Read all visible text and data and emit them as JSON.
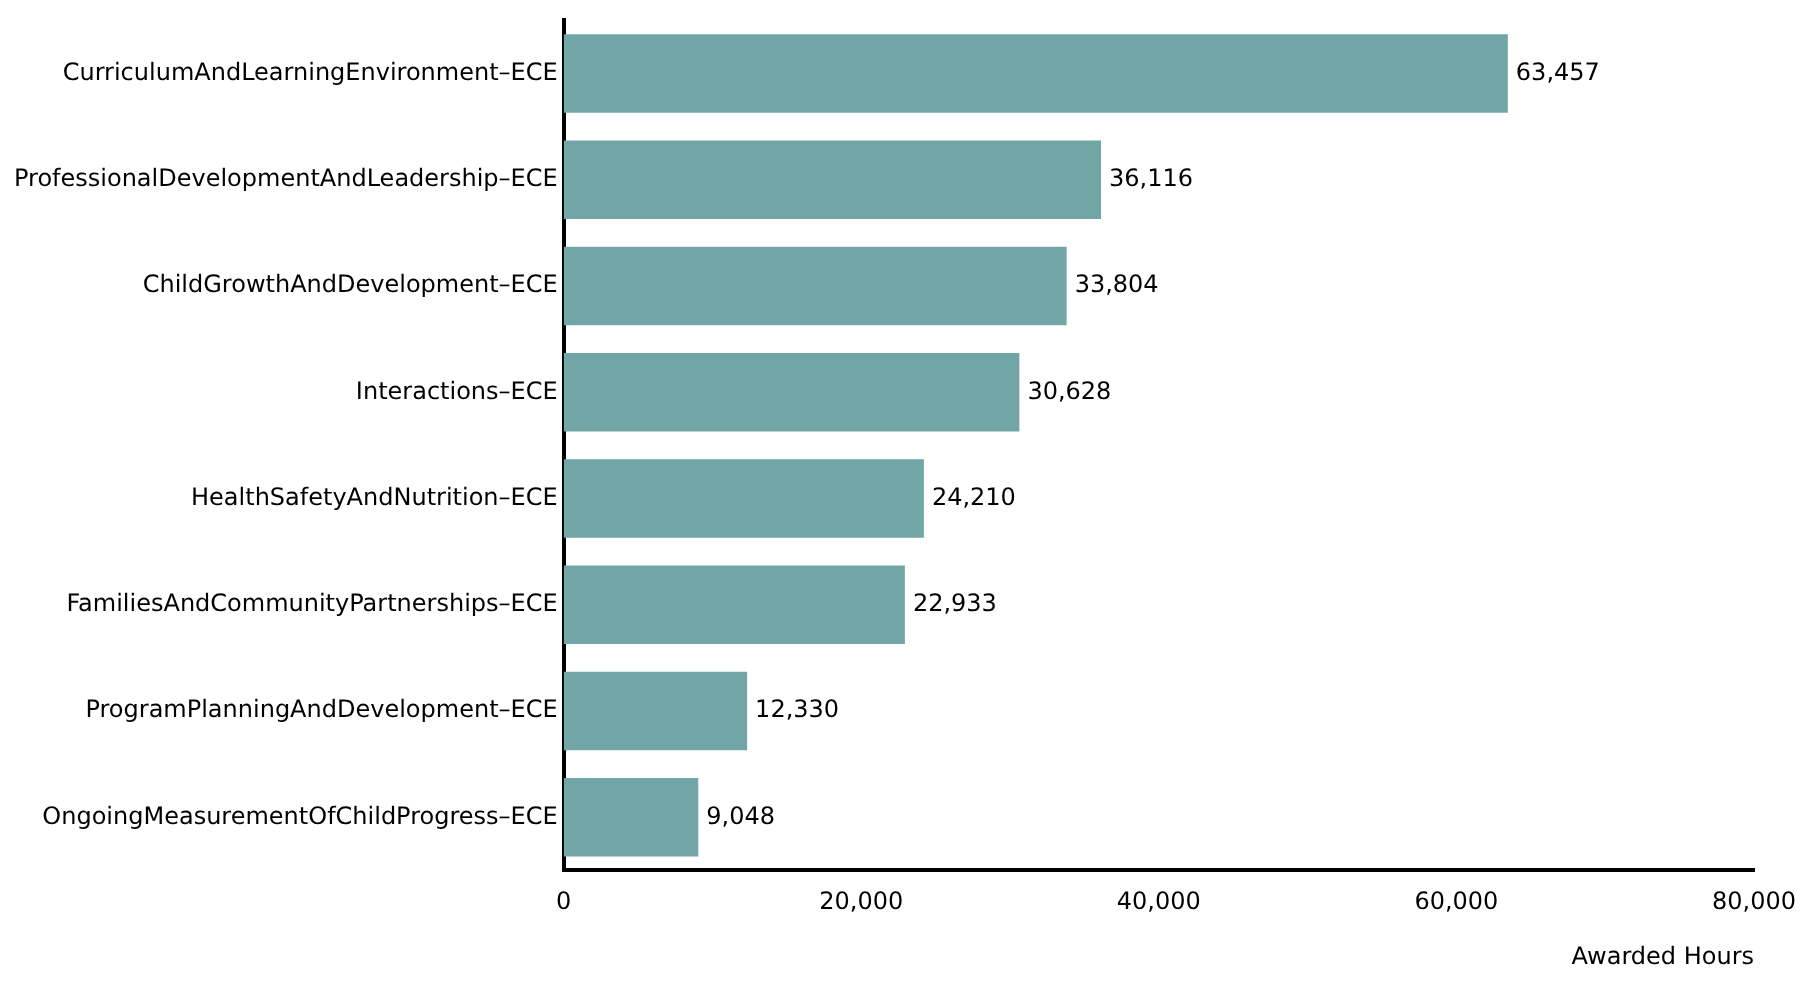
{
  "chart_data": {
    "type": "bar",
    "orientation": "horizontal",
    "xlabel": "Awarded Hours",
    "categories": [
      "CurriculumAndLearningEnvironment–ECE",
      "ProfessionalDevelopmentAndLeadership–ECE",
      "ChildGrowthAndDevelopment–ECE",
      "Interactions–ECE",
      "HealthSafetyAndNutrition–ECE",
      "FamiliesAndCommunityPartnerships–ECE",
      "ProgramPlanningAndDevelopment–ECE",
      "OngoingMeasurementOfChildProgress–ECE"
    ],
    "values": [
      63457,
      36116,
      33804,
      30628,
      24210,
      22933,
      12330,
      9048
    ],
    "color": "#72a6a6",
    "xlim": [
      0,
      80000
    ],
    "xticks": [
      0,
      {
        "value": 20000,
        "label": "20,000"
      },
      {
        "value": 40000,
        "label": "40,000"
      },
      {
        "value": 60000,
        "label": "60,000"
      },
      {
        "value": 80000,
        "label": "80,000"
      }
    ],
    "value_labels": [
      "63,457",
      "36,116",
      "33,804",
      "30,628",
      "24,210",
      "22,933",
      "12,330",
      "9,048"
    ],
    "grid": false,
    "legend": false
  }
}
